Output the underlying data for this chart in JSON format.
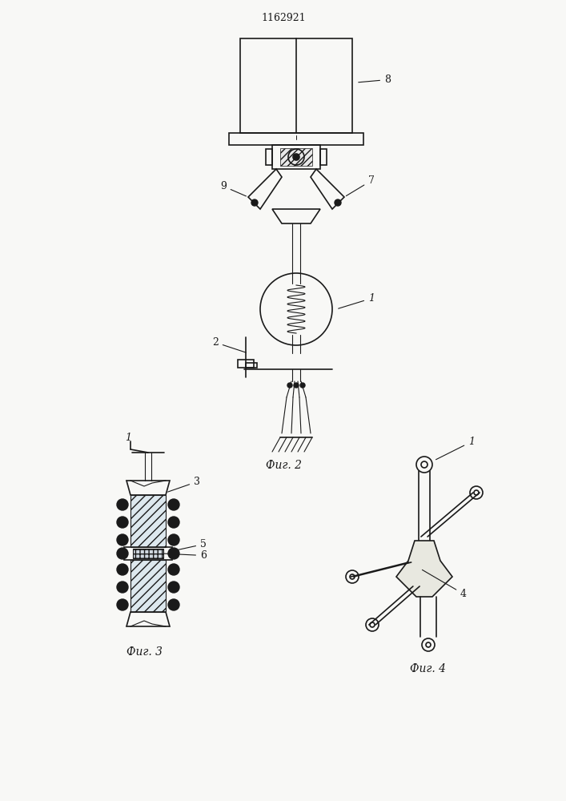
{
  "title": "1162921",
  "background_color": "#f8f8f6",
  "line_color": "#1a1a1a",
  "fig_caption_2": "Фиг. 2",
  "fig_caption_3": "Фиг. 3",
  "fig_caption_4": "Фиг. 4"
}
